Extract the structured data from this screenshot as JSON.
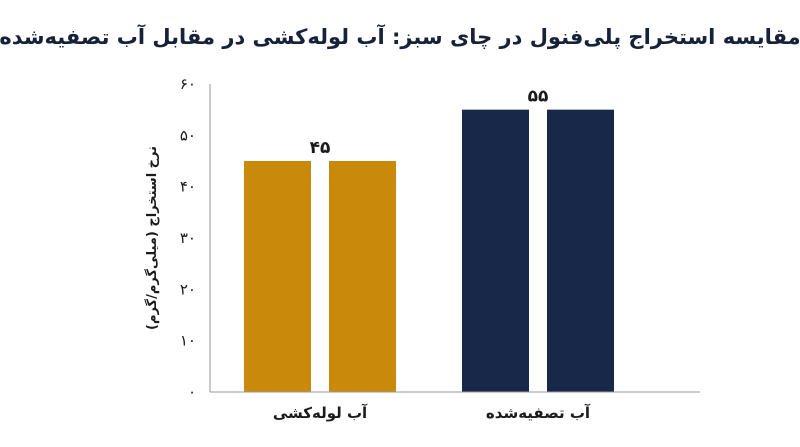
{
  "chart_data": {
    "type": "bar",
    "title": "مقایسه استخراج پلی‌فنول در چای سبز: آب لوله‌کشی در مقابل آب تصفیه‌شده",
    "xlabel": "",
    "ylabel": "نرخ استخراج (میلی‌گرم/گرم)",
    "categories": [
      "آب لوله‌کشی",
      "آب تصفیه‌شده"
    ],
    "values": [
      45,
      55
    ],
    "value_labels": [
      "۴۵",
      "۵۵"
    ],
    "colors": [
      "#c98a0c",
      "#182848"
    ],
    "ylim": [
      0,
      60
    ],
    "yticks": [
      0,
      10,
      20,
      30,
      40,
      50,
      60
    ],
    "ytick_labels": [
      "۰",
      "۱۰",
      "۲۰",
      "۳۰",
      "۴۰",
      "۵۰",
      "۶۰"
    ],
    "grid": false,
    "legend": "none"
  }
}
